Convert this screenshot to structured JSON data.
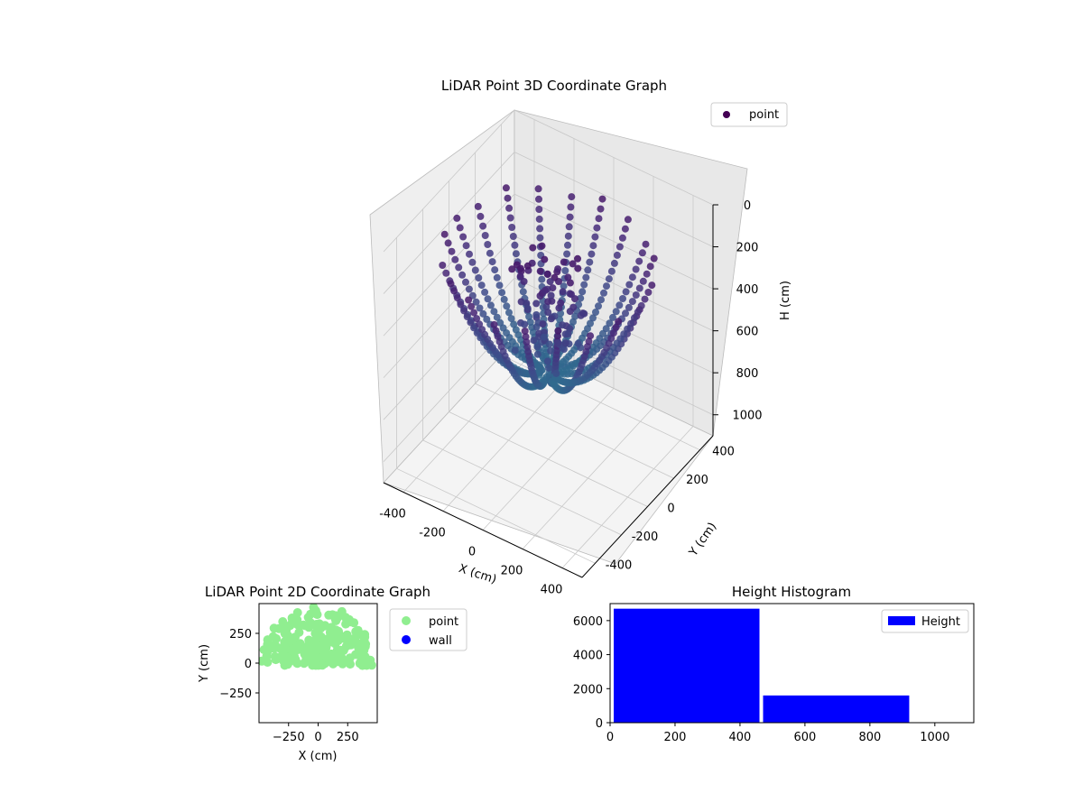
{
  "chart_data": [
    {
      "type": "scatter3d",
      "title": "LiDAR Point 3D Coordinate Graph",
      "xlabel": "X (cm)",
      "ylabel": "Y (cm)",
      "zlabel": "H (cm)",
      "xlim": [
        -500,
        500
      ],
      "ylim": [
        -500,
        500
      ],
      "zlim": [
        0,
        1100
      ],
      "z_inverted": true,
      "x_ticks": [
        "-400",
        "-200",
        "0",
        "200",
        "400"
      ],
      "y_ticks": [
        "-400",
        "-200",
        "0",
        "200",
        "400"
      ],
      "z_ticks": [
        "0",
        "200",
        "400",
        "600",
        "800",
        "1000"
      ],
      "legend": {
        "entries": [
          "point"
        ],
        "placement": "top-right"
      },
      "series": [
        {
          "name": "point",
          "color": "#440154",
          "description_points": "dense downward-curving arcs converging near center bottom (H≈600-750), colored by height (viridis)"
        }
      ],
      "grid": true
    },
    {
      "type": "scatter",
      "title": "LiDAR Point 2D Coordinate Graph",
      "xlabel": "X (cm)",
      "ylabel": "Y (cm)",
      "xlim": [
        -500,
        500
      ],
      "ylim": [
        -500,
        500
      ],
      "x_ticks": [
        "−250",
        "0",
        "250"
      ],
      "y_ticks": [
        "250",
        "0",
        "−250"
      ],
      "legend": {
        "entries": [
          "point",
          "wall"
        ],
        "placement": "outside-right"
      },
      "series": [
        {
          "name": "point",
          "color": "#90ee90"
        },
        {
          "name": "wall",
          "color": "#0000ff"
        }
      ],
      "grid": false
    },
    {
      "type": "bar",
      "title": "Height Histogram",
      "xlabel": "",
      "ylabel": "",
      "bins": [
        [
          0,
          460
        ],
        [
          460,
          910
        ]
      ],
      "values": [
        6700,
        1600
      ],
      "xlim": [
        0,
        1120
      ],
      "ylim": [
        0,
        7000
      ],
      "x_ticks": [
        "0",
        "200",
        "400",
        "600",
        "800",
        "1000"
      ],
      "y_ticks": [
        "0",
        "2000",
        "4000",
        "6000"
      ],
      "legend": {
        "entries": [
          "Height"
        ],
        "placement": "top-right"
      },
      "series": [
        {
          "name": "Height",
          "color": "#0000ff"
        }
      ],
      "grid": false
    }
  ]
}
